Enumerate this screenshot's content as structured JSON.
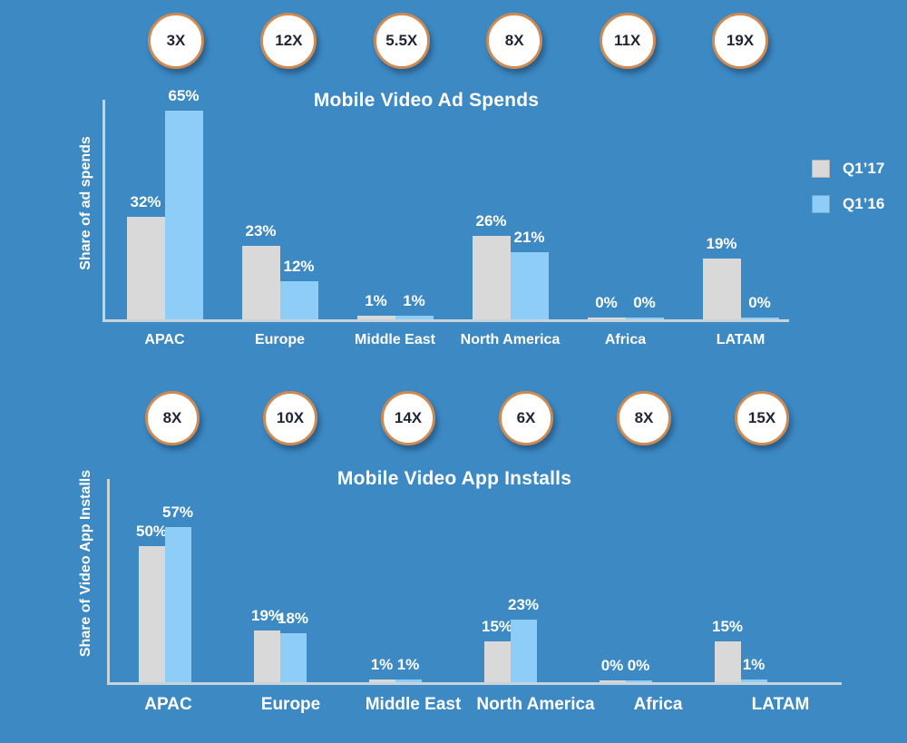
{
  "colors": {
    "background": "#3c89c4",
    "axis": "#c9d3da",
    "badge_fill": "#ffffff",
    "badge_border": "#cf8a52",
    "badge_text": "#1f2533",
    "label_text": "#ffffff"
  },
  "legend": {
    "position": "right",
    "items": [
      {
        "label": "Q1’17",
        "color": "#d9d9d9"
      },
      {
        "label": "Q1’16",
        "color": "#8dcdf8"
      }
    ]
  },
  "chart_data": [
    {
      "type": "bar",
      "title": "Mobile Video Ad Spends",
      "ylabel": "Share of ad spends",
      "xlabel": "",
      "ylim": [
        0,
        70
      ],
      "grid": false,
      "legend_position": "right",
      "value_suffix": "%",
      "categories": [
        "APAC",
        "Europe",
        "Middle East",
        "North America",
        "Africa",
        "LATAM"
      ],
      "multipliers": [
        "3X",
        "12X",
        "5.5X",
        "8X",
        "11X",
        "19X"
      ],
      "series": [
        {
          "name": "Q1’17",
          "color": "#d9d9d9",
          "values": [
            32,
            23,
            1,
            26,
            0,
            19
          ],
          "labels": [
            "32%",
            "23%",
            "1%",
            "26%",
            "0%",
            "19%"
          ]
        },
        {
          "name": "Q1’16",
          "color": "#8dcdf8",
          "values": [
            65,
            12,
            1,
            21,
            0,
            0
          ],
          "labels": [
            "65%",
            "12%",
            "1%",
            "21%",
            "0%",
            "0%"
          ]
        }
      ]
    },
    {
      "type": "bar",
      "title": "Mobile Video App Installs",
      "ylabel": "Share of Video App Installs",
      "xlabel": "",
      "ylim": [
        0,
        60
      ],
      "grid": false,
      "legend_position": "none",
      "value_suffix": "%",
      "categories": [
        "APAC",
        "Europe",
        "Middle East",
        "North America",
        "Africa",
        "LATAM"
      ],
      "multipliers": [
        "8X",
        "10X",
        "14X",
        "6X",
        "8X",
        "15X"
      ],
      "series": [
        {
          "name": "Q1’17",
          "color": "#d9d9d9",
          "values": [
            50,
            19,
            1,
            15,
            0,
            15
          ],
          "labels": [
            "50%",
            "19%",
            "1%",
            "15%",
            "0%",
            "15%"
          ]
        },
        {
          "name": "Q1’16",
          "color": "#8dcdf8",
          "values": [
            57,
            18,
            1,
            23,
            0,
            1
          ],
          "labels": [
            "57%",
            "18%",
            "1%",
            "23%",
            "0%",
            "1%"
          ]
        }
      ]
    }
  ]
}
